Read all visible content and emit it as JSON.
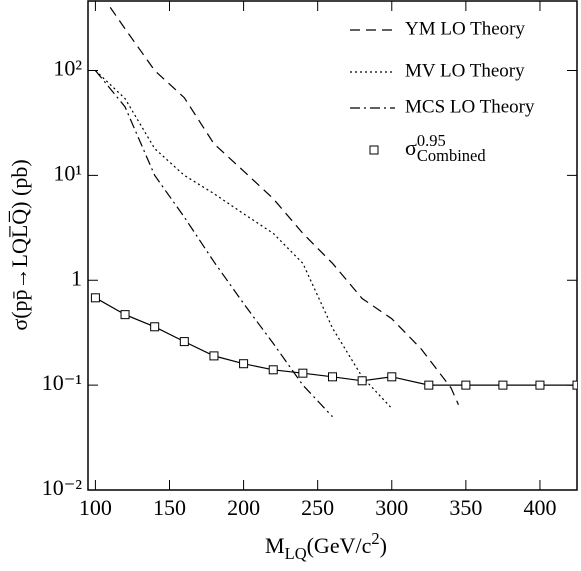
{
  "chart_data": {
    "type": "line",
    "log_y": true,
    "x_label": "M_{LQ}(GeV/c^{2})",
    "y_label": "σ(pp̄→LQL̅Q̅) (pb)",
    "xlim": [
      95,
      425
    ],
    "xticks": [
      100,
      150,
      200,
      250,
      300,
      350,
      400
    ],
    "ylim": [
      0.01,
      460
    ],
    "yticks": [
      {
        "value": 0.01,
        "label": "10⁻²"
      },
      {
        "value": 0.1,
        "label": "10⁻¹"
      },
      {
        "value": 1,
        "label": "1"
      },
      {
        "value": 10,
        "label": "10¹"
      },
      {
        "value": 100,
        "label": "10²"
      }
    ],
    "legend": "upper right",
    "series": [
      {
        "name": "YM LO Theory",
        "color": "#000000",
        "dash": "10,6",
        "marker": false,
        "x": [
          110,
          120,
          140,
          160,
          180,
          200,
          220,
          240,
          260,
          280,
          300,
          320,
          340,
          345
        ],
        "values": [
          400,
          250,
          100,
          55,
          20,
          11,
          6,
          2.8,
          1.45,
          0.67,
          0.43,
          0.22,
          0.094,
          0.065
        ]
      },
      {
        "name": "MV LO Theory",
        "color": "#000000",
        "dash": "2,3",
        "marker": false,
        "x": [
          100,
          120,
          140,
          160,
          180,
          200,
          220,
          240,
          260,
          280,
          300
        ],
        "values": [
          100,
          54,
          18,
          10,
          6.7,
          4.3,
          2.8,
          1.45,
          0.35,
          0.12,
          0.06
        ]
      },
      {
        "name": "MCS LO Theory",
        "color": "#000000",
        "dash": "10,4,2,4",
        "marker": false,
        "x": [
          100,
          120,
          140,
          160,
          180,
          200,
          220,
          240,
          260
        ],
        "values": [
          100,
          45,
          10,
          4,
          1.5,
          0.6,
          0.25,
          0.1,
          0.05
        ]
      },
      {
        "name": "σ^{0.95}_{Combined}",
        "color": "#000000",
        "dash": "none",
        "marker": true,
        "x": [
          100,
          120,
          140,
          160,
          180,
          200,
          220,
          240,
          260,
          280,
          300,
          325,
          350,
          375,
          400,
          425
        ],
        "values": [
          0.68,
          0.47,
          0.36,
          0.26,
          0.19,
          0.16,
          0.14,
          0.13,
          0.12,
          0.11,
          0.12,
          0.1,
          0.1,
          0.1,
          0.1,
          0.1
        ]
      }
    ]
  }
}
